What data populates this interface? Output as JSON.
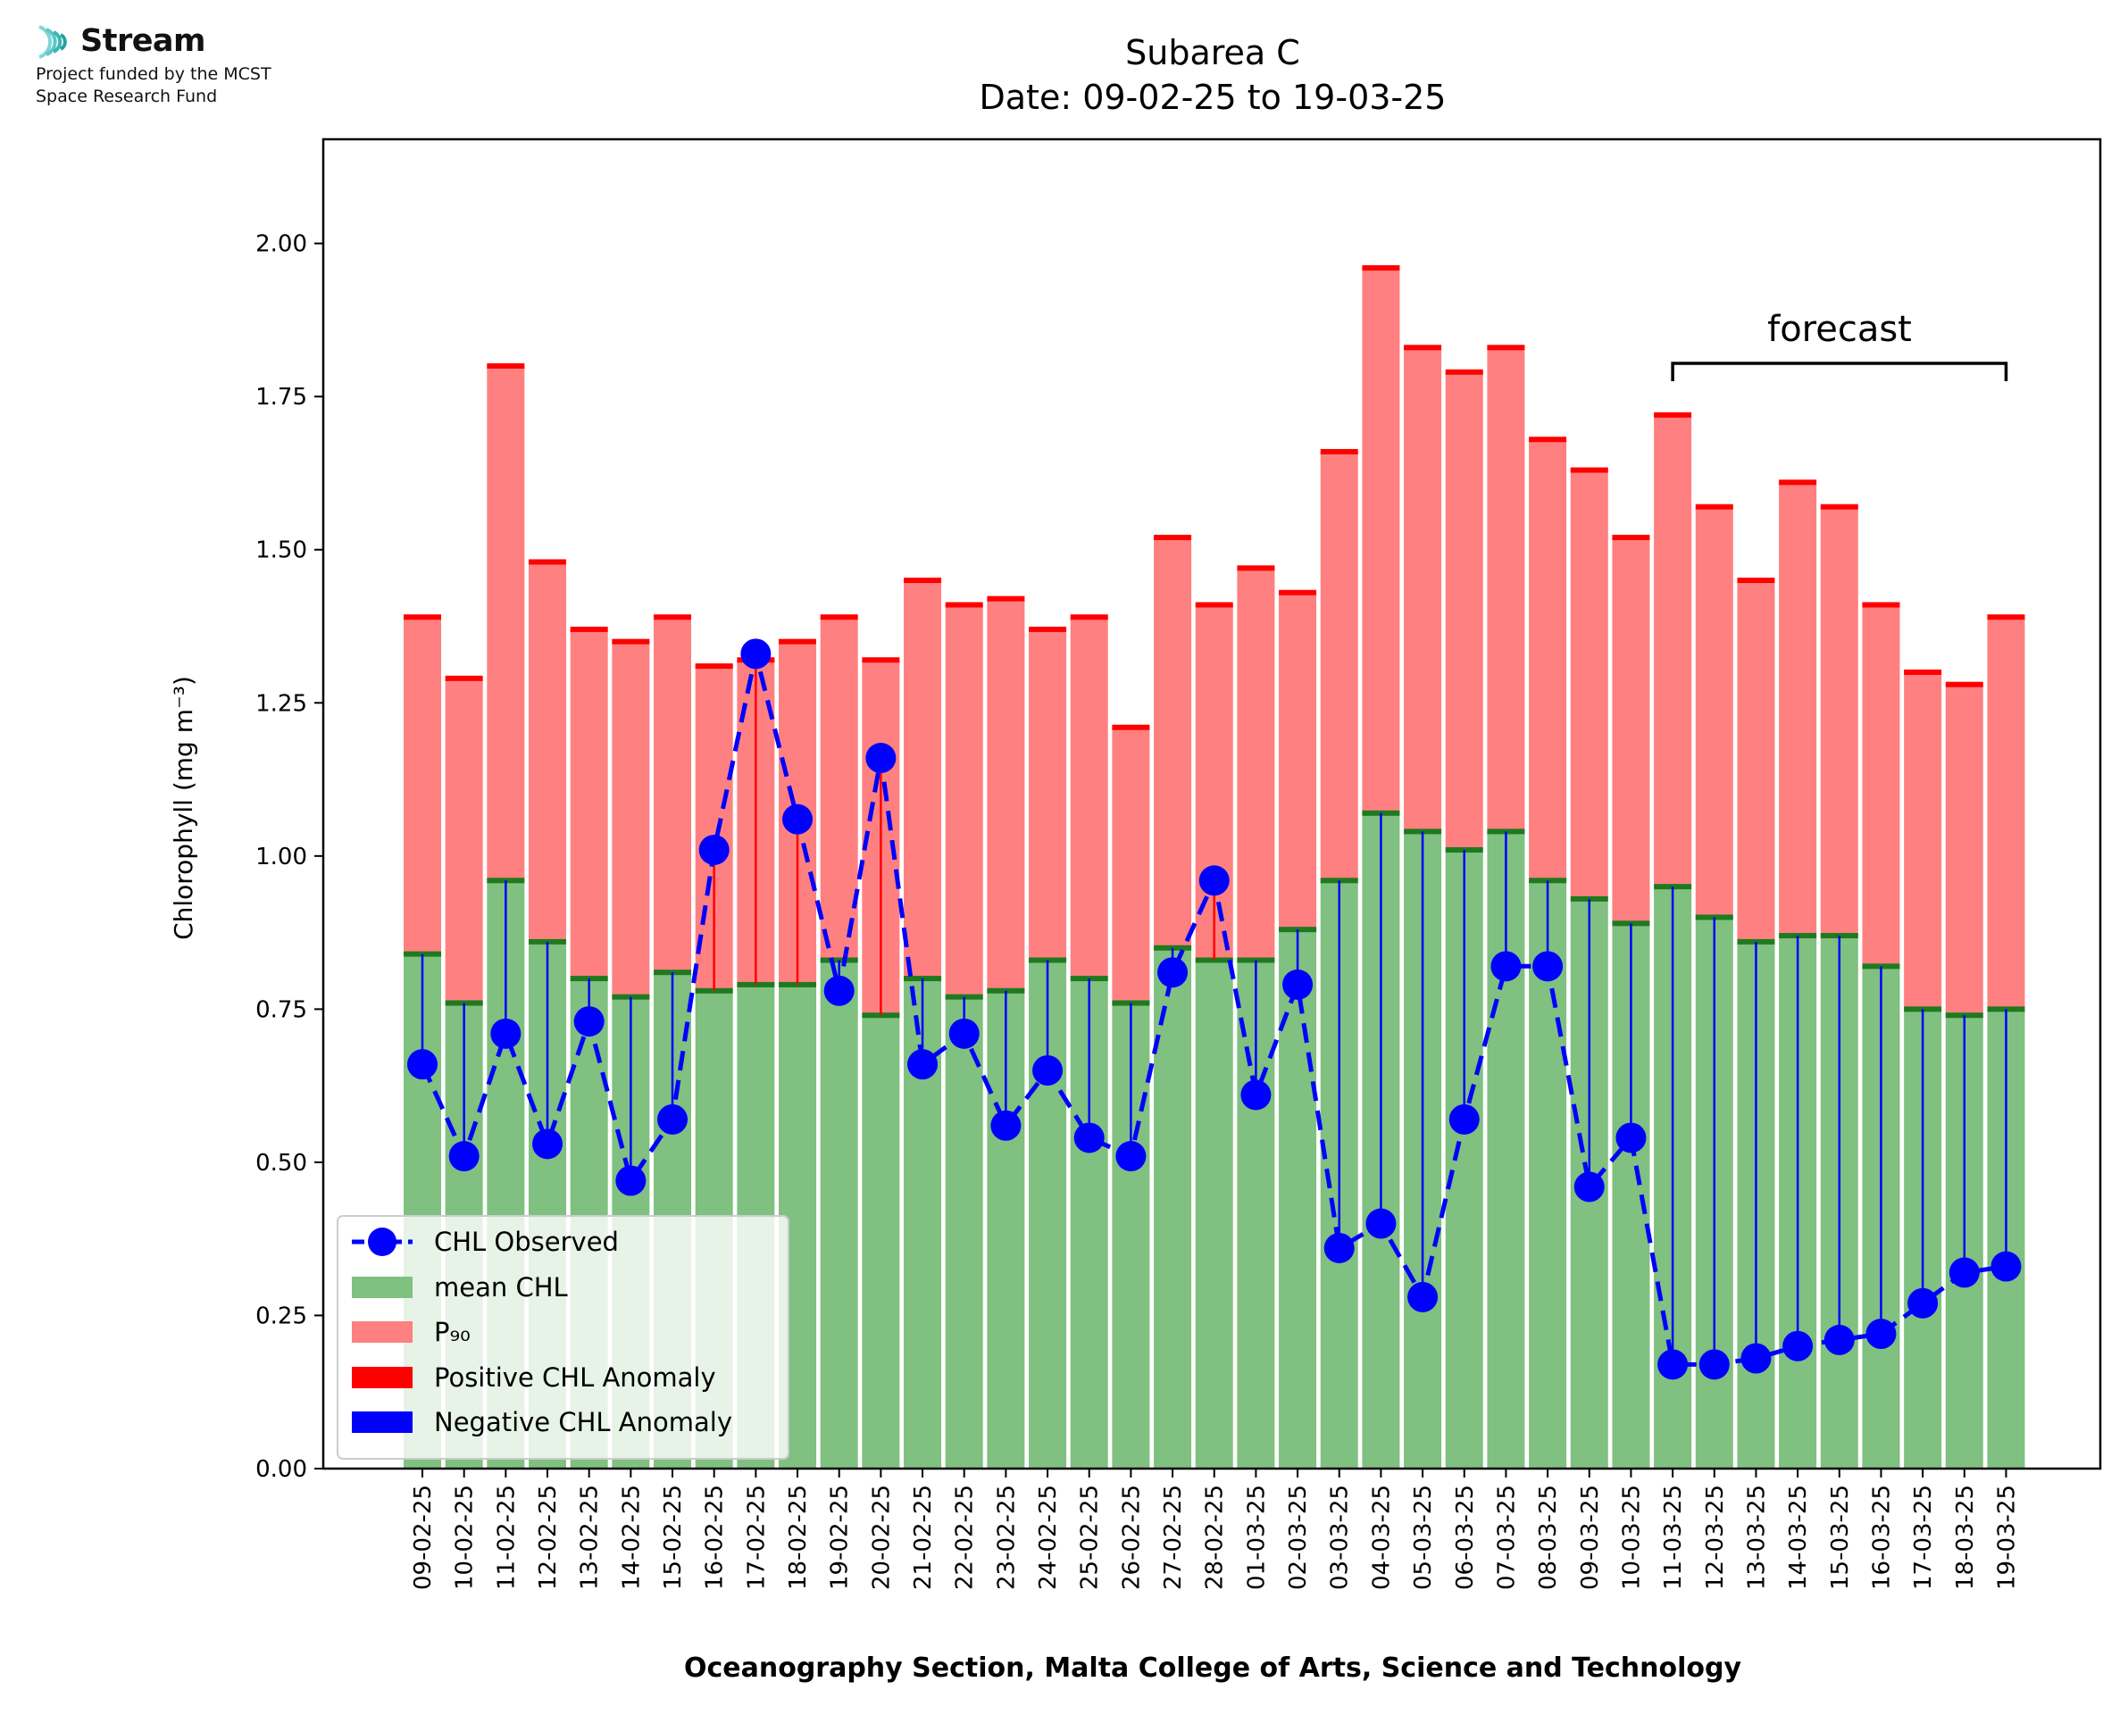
{
  "logo": {
    "icon": "stream-waves-icon",
    "title": "Stream",
    "line1": "Project funded by the MCST",
    "line2": "Space Research Fund"
  },
  "chart_data": {
    "type": "bar",
    "title": "Subarea C",
    "subtitle": "Date: 09-02-25 to 19-03-25",
    "xlabel": "Oceanography Section, Malta College of Arts, Science and Technology",
    "ylabel": "Chlorophyll (mg m⁻³)",
    "ylim": [
      0,
      2.17
    ],
    "yticks": [
      "0.00",
      "0.25",
      "0.50",
      "0.75",
      "1.00",
      "1.25",
      "1.50",
      "1.75",
      "2.00"
    ],
    "grid": false,
    "legend_position": "lower-left",
    "categories": [
      "09-02-25",
      "10-02-25",
      "11-02-25",
      "12-02-25",
      "13-02-25",
      "14-02-25",
      "15-02-25",
      "16-02-25",
      "17-02-25",
      "18-02-25",
      "19-02-25",
      "20-02-25",
      "21-02-25",
      "22-02-25",
      "23-02-25",
      "24-02-25",
      "25-02-25",
      "26-02-25",
      "27-02-25",
      "28-02-25",
      "01-03-25",
      "02-03-25",
      "03-03-25",
      "04-03-25",
      "05-03-25",
      "06-03-25",
      "07-03-25",
      "08-03-25",
      "09-03-25",
      "10-03-25",
      "11-03-25",
      "12-03-25",
      "13-03-25",
      "14-03-25",
      "15-03-25",
      "16-03-25",
      "17-03-25",
      "18-03-25",
      "19-03-25"
    ],
    "series": [
      {
        "name": "CHL Observed",
        "color": "#0000ff",
        "style": "dashed-line-with-circles",
        "values": [
          0.66,
          0.51,
          0.71,
          0.53,
          0.73,
          0.47,
          0.57,
          1.01,
          1.33,
          1.06,
          0.78,
          1.16,
          0.66,
          0.71,
          0.56,
          0.65,
          0.54,
          0.51,
          0.81,
          0.96,
          0.61,
          0.79,
          0.36,
          0.4,
          0.28,
          0.57,
          0.82,
          0.82,
          0.46,
          0.54,
          0.17,
          0.17,
          0.18,
          0.2,
          0.21,
          0.22,
          0.27,
          0.32,
          0.33
        ]
      },
      {
        "name": "mean CHL",
        "color": "#80c080",
        "values": [
          0.84,
          0.76,
          0.96,
          0.86,
          0.8,
          0.77,
          0.81,
          0.78,
          0.79,
          0.79,
          0.83,
          0.74,
          0.8,
          0.77,
          0.78,
          0.83,
          0.8,
          0.76,
          0.85,
          0.83,
          0.83,
          0.88,
          0.96,
          1.07,
          1.04,
          1.01,
          1.04,
          0.96,
          0.93,
          0.89,
          0.95,
          0.9,
          0.86,
          0.87,
          0.87,
          0.82,
          0.75,
          0.74,
          0.75
        ]
      },
      {
        "name": "P₉₀",
        "color": "#ff8080",
        "values": [
          1.39,
          1.29,
          1.8,
          1.48,
          1.37,
          1.35,
          1.39,
          1.31,
          1.32,
          1.35,
          1.39,
          1.32,
          1.45,
          1.41,
          1.42,
          1.37,
          1.39,
          1.21,
          1.52,
          1.41,
          1.47,
          1.43,
          1.66,
          1.96,
          1.83,
          1.79,
          1.83,
          1.68,
          1.63,
          1.52,
          1.72,
          1.57,
          1.45,
          1.61,
          1.57,
          1.41,
          1.3,
          1.28,
          1.39
        ]
      }
    ],
    "legend": [
      "CHL Observed",
      "mean CHL",
      "P₉₀",
      "Positive CHL Anomaly",
      "Negative CHL Anomaly"
    ],
    "anomaly_colors": {
      "positive": "#ff0000",
      "negative": "#0000ff"
    },
    "annotation": {
      "text": "forecast",
      "from": "11-03-25",
      "to": "19-03-25"
    }
  }
}
